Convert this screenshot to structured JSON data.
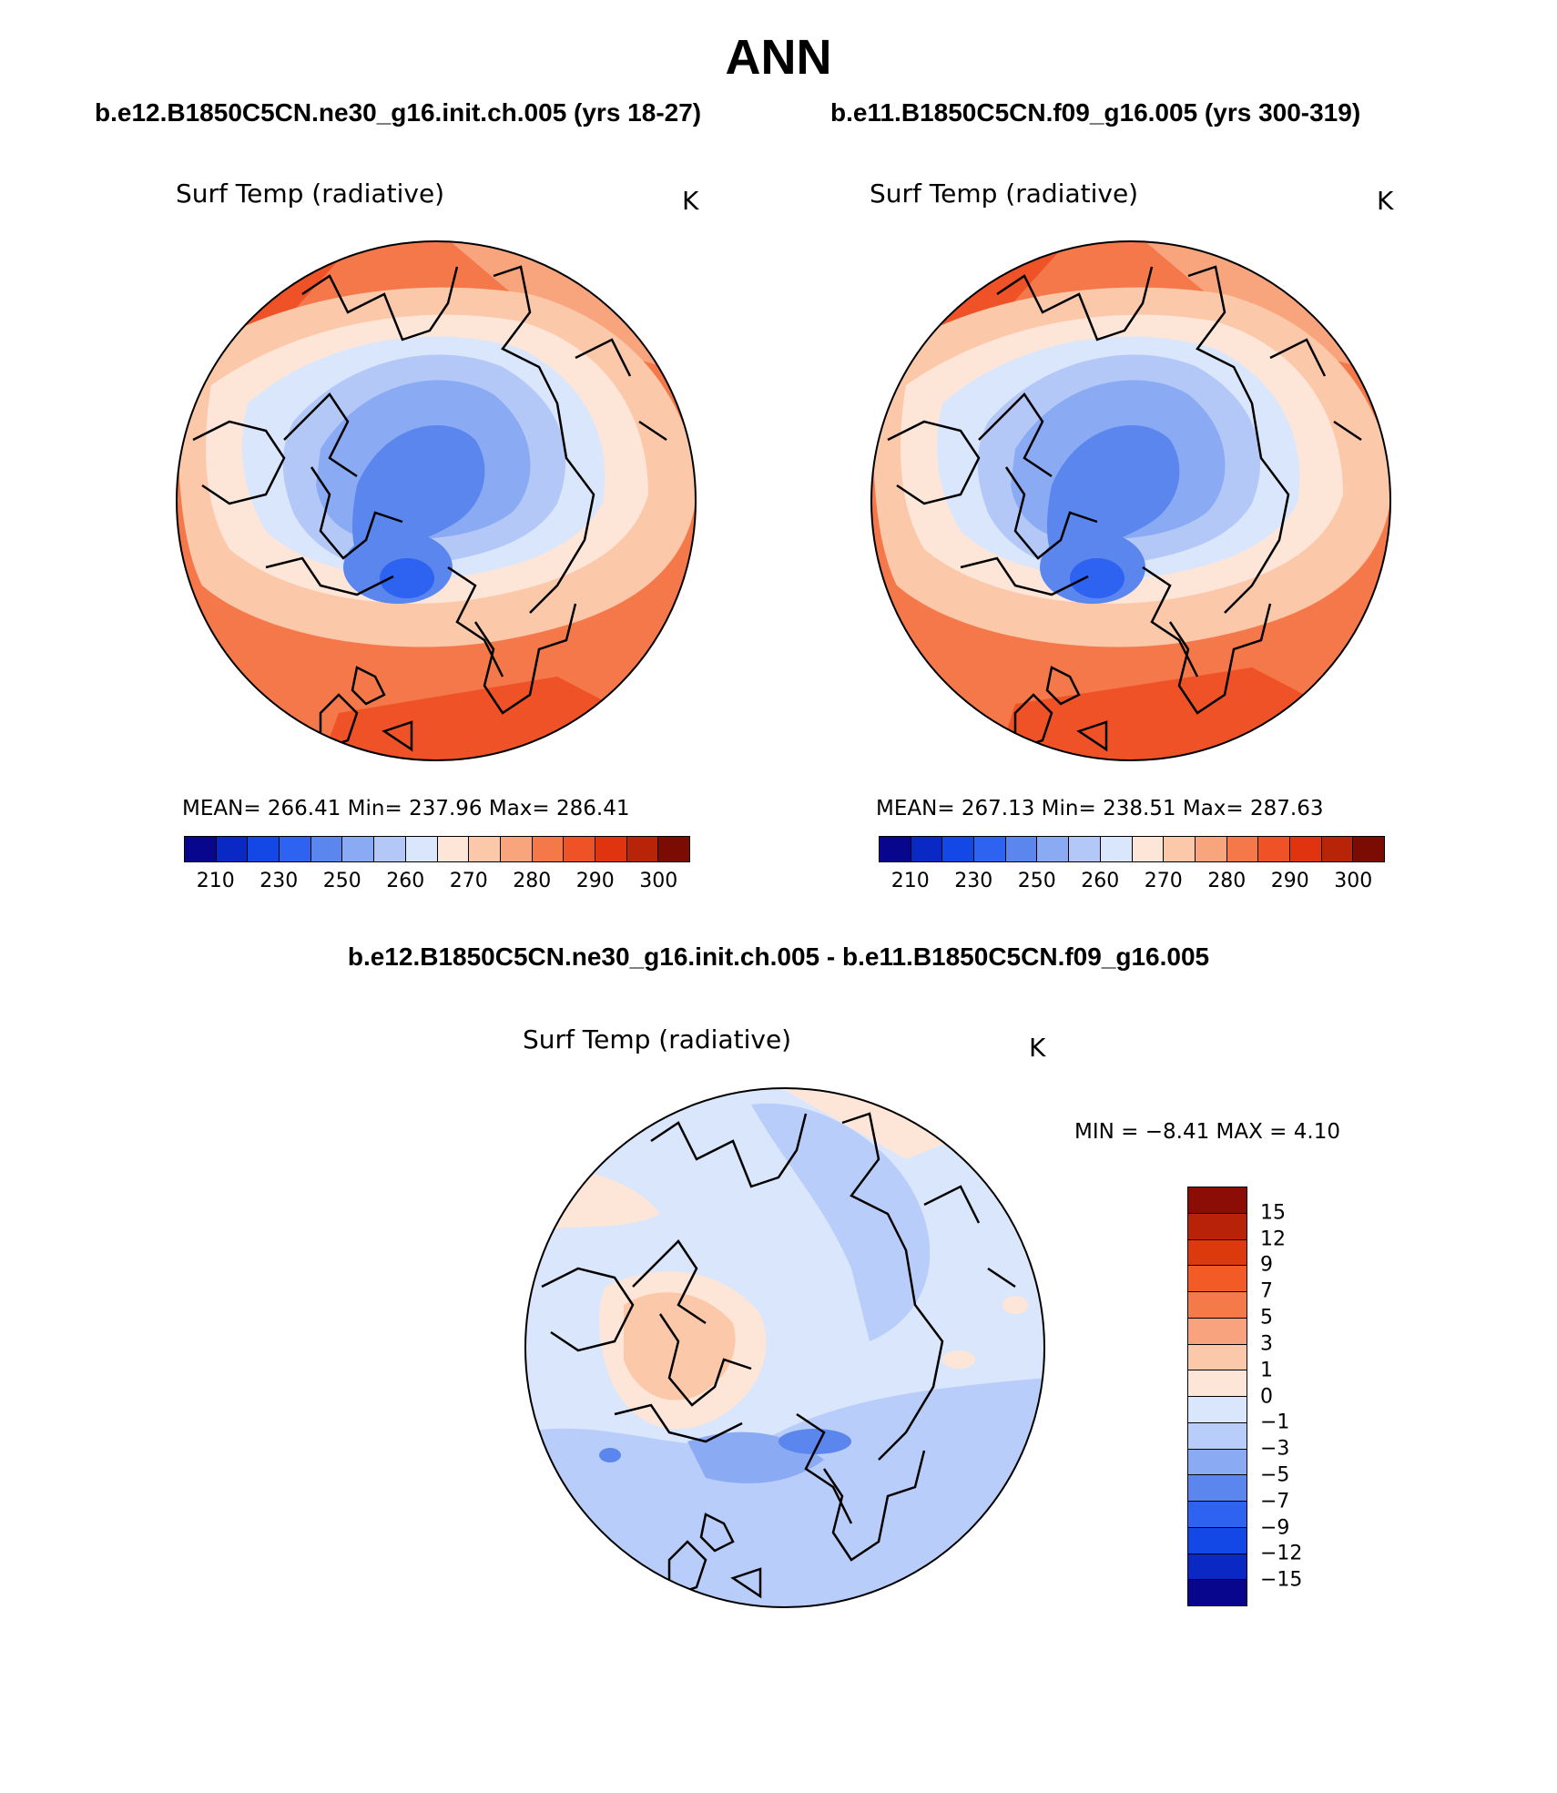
{
  "title": "ANN",
  "panels": [
    {
      "case": "b.e12.B1850C5CN.ne30_g16.init.ch.005 (yrs 18-27)",
      "variable": "Surf Temp (radiative)",
      "units": "K",
      "stats": "MEAN= 266.41   Min= 237.96   Max= 286.41",
      "ticks": [
        "210",
        "230",
        "250",
        "260",
        "270",
        "280",
        "290",
        "300"
      ]
    },
    {
      "case": "b.e11.B1850C5CN.f09_g16.005 (yrs 300-319)",
      "variable": "Surf Temp (radiative)",
      "units": "K",
      "stats": "MEAN= 267.13   Min= 238.51   Max= 287.63",
      "ticks": [
        "210",
        "230",
        "250",
        "260",
        "270",
        "280",
        "290",
        "300"
      ]
    }
  ],
  "diff": {
    "title": "b.e12.B1850C5CN.ne30_g16.init.ch.005 - b.e11.B1850C5CN.f09_g16.005",
    "variable": "Surf Temp (radiative)",
    "units": "K",
    "stats": "MIN =   −8.41  MAX =     4.10",
    "labels": [
      "15",
      "12",
      "9",
      "7",
      "5",
      "3",
      "1",
      "0",
      "−1",
      "−3",
      "−5",
      "−7",
      "−9",
      "−12",
      "−15"
    ]
  },
  "colors": {
    "abs_scale": [
      "#08068c",
      "#0a28c4",
      "#1448e6",
      "#2e62f0",
      "#5a86ee",
      "#8aaaf4",
      "#b4c8f8",
      "#dae6fc",
      "#fde6d8",
      "#fcc8aa",
      "#f8a47c",
      "#f5784a",
      "#ee5226",
      "#e03410",
      "#b82408",
      "#7a0c04"
    ],
    "diff_scale": [
      "#8c0c06",
      "#b82208",
      "#dc3a0c",
      "#f25a26",
      "#f47a4a",
      "#f8a37e",
      "#fcc8aa",
      "#fde6d8",
      "#dae6fc",
      "#b8cdf9",
      "#8aaaf4",
      "#5a86ee",
      "#2e62f0",
      "#1448e6",
      "#0a28c4",
      "#08068c"
    ]
  }
}
